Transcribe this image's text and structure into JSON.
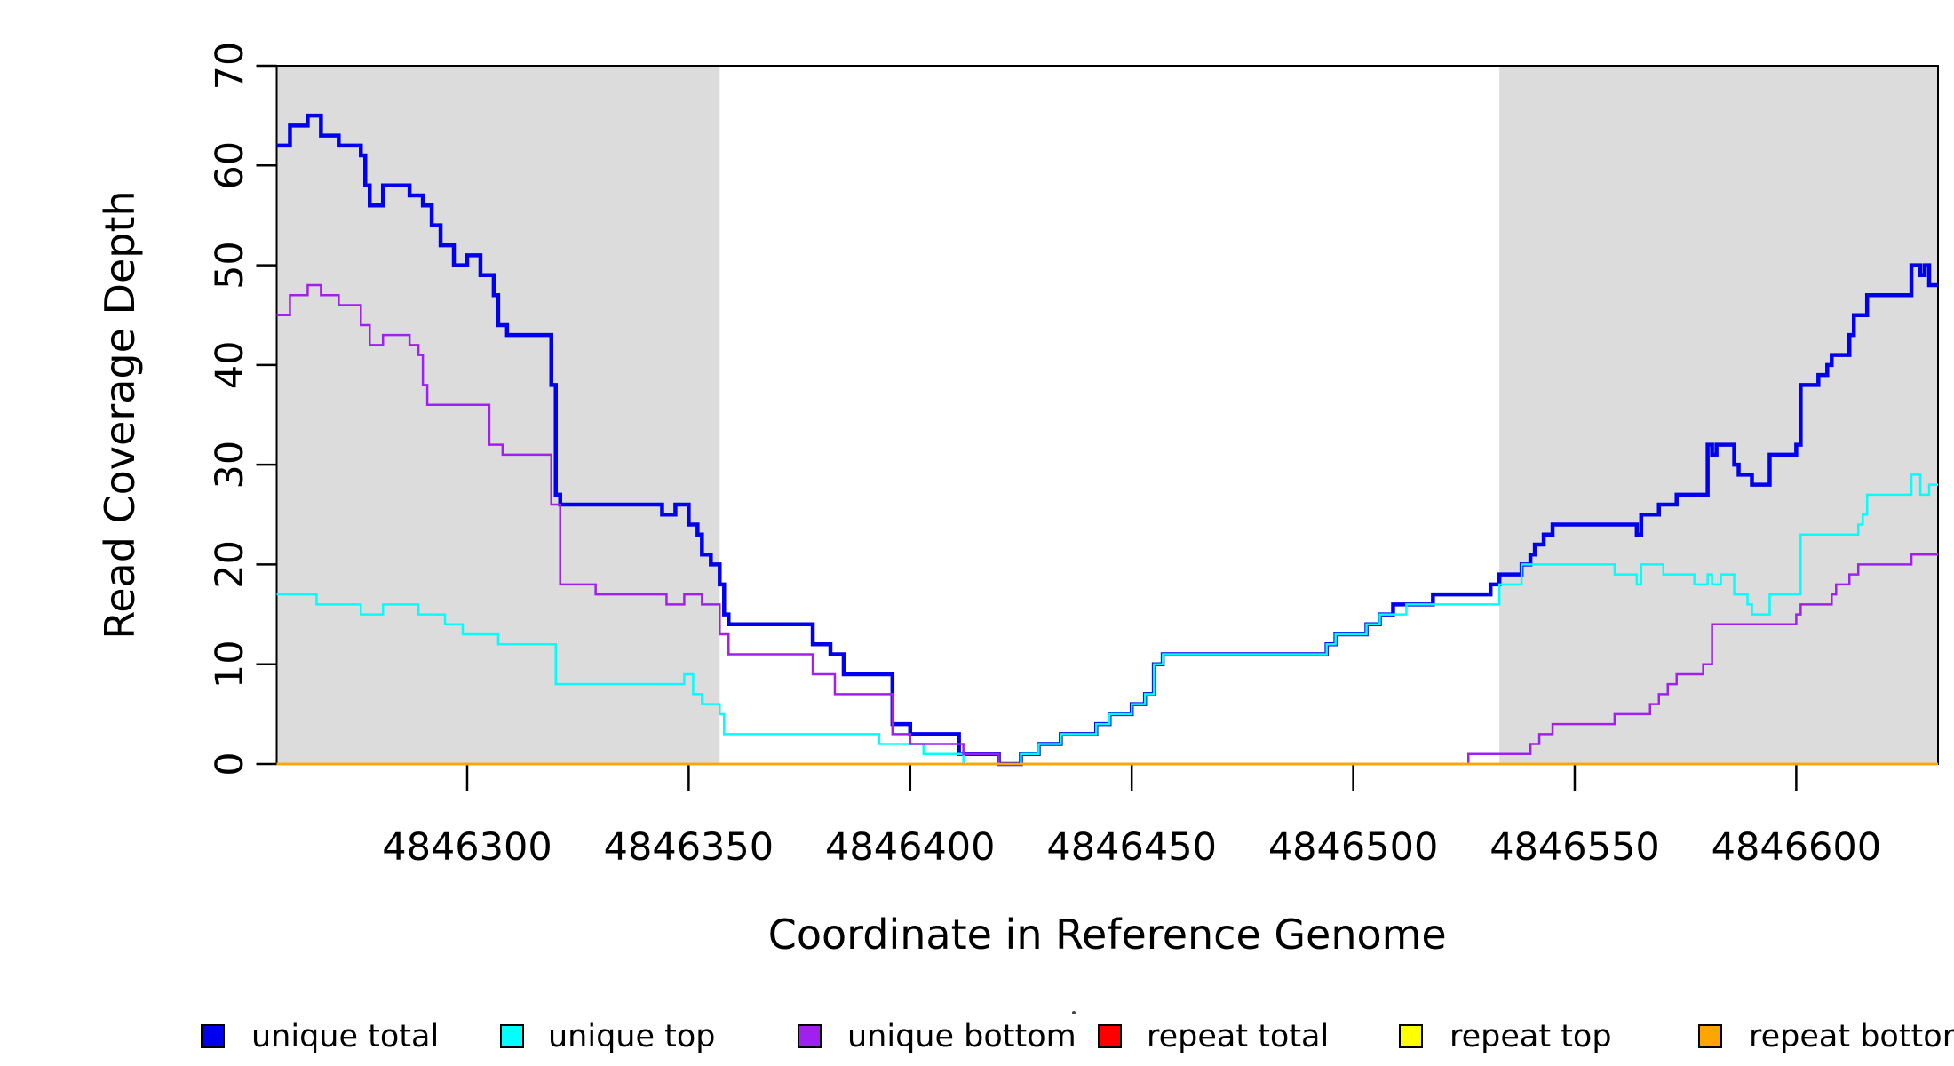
{
  "figure": {
    "background": "#FFFFFF",
    "description": "Read coverage depth step plot across a reference genome window"
  },
  "chart_data": {
    "type": "line",
    "subtype": "step",
    "title": "",
    "xlabel": "Coordinate in Reference Genome",
    "ylabel": "Read Coverage Depth",
    "xlim": [
      4846257,
      4846632
    ],
    "ylim": [
      0,
      70
    ],
    "grid": false,
    "x_ticks": [
      {
        "value": 4846300,
        "label": "4846300"
      },
      {
        "value": 4846350,
        "label": "4846350"
      },
      {
        "value": 4846400,
        "label": "4846400"
      },
      {
        "value": 4846450,
        "label": "4846450"
      },
      {
        "value": 4846500,
        "label": "4846500"
      },
      {
        "value": 4846550,
        "label": "4846550"
      },
      {
        "value": 4846600,
        "label": "4846600"
      }
    ],
    "y_ticks": [
      {
        "value": 0,
        "label": "0"
      },
      {
        "value": 10,
        "label": "10"
      },
      {
        "value": 20,
        "label": "20"
      },
      {
        "value": 30,
        "label": "30"
      },
      {
        "value": 40,
        "label": "40"
      },
      {
        "value": 50,
        "label": "50"
      },
      {
        "value": 60,
        "label": "60"
      },
      {
        "value": 70,
        "label": "70"
      }
    ],
    "shaded_regions": [
      {
        "x0": 4846257,
        "x1": 4846357,
        "color": "#DCDCDC",
        "border": "#000000"
      },
      {
        "x0": 4846533,
        "x1": 4846632,
        "color": "#DCDCDC",
        "border": "#000000"
      }
    ],
    "plot_border_color": "#000000",
    "series": [
      {
        "name": "unique total",
        "color": "#0000EE",
        "width": 4.5,
        "steps": [
          [
            4846257,
            62
          ],
          [
            4846260,
            64
          ],
          [
            4846264,
            65
          ],
          [
            4846267,
            63
          ],
          [
            4846271,
            62
          ],
          [
            4846276,
            61
          ],
          [
            4846277,
            58
          ],
          [
            4846278,
            56
          ],
          [
            4846281,
            58
          ],
          [
            4846287,
            57
          ],
          [
            4846290,
            56
          ],
          [
            4846292,
            54
          ],
          [
            4846294,
            52
          ],
          [
            4846297,
            50
          ],
          [
            4846300,
            51
          ],
          [
            4846303,
            49
          ],
          [
            4846306,
            47
          ],
          [
            4846307,
            44
          ],
          [
            4846309,
            43
          ],
          [
            4846319,
            38
          ],
          [
            4846320,
            27
          ],
          [
            4846321,
            26
          ],
          [
            4846344,
            25
          ],
          [
            4846347,
            26
          ],
          [
            4846350,
            24
          ],
          [
            4846352,
            23
          ],
          [
            4846353,
            21
          ],
          [
            4846355,
            20
          ],
          [
            4846357,
            18
          ],
          [
            4846358,
            15
          ],
          [
            4846359,
            14
          ],
          [
            4846378,
            12
          ],
          [
            4846382,
            11
          ],
          [
            4846385,
            9
          ],
          [
            4846396,
            4
          ],
          [
            4846400,
            3
          ],
          [
            4846411,
            1
          ],
          [
            4846420,
            0
          ],
          [
            4846425,
            1
          ],
          [
            4846429,
            2
          ],
          [
            4846434,
            3
          ],
          [
            4846442,
            4
          ],
          [
            4846445,
            5
          ],
          [
            4846450,
            6
          ],
          [
            4846453,
            7
          ],
          [
            4846455,
            10
          ],
          [
            4846457,
            11
          ],
          [
            4846494,
            12
          ],
          [
            4846496,
            13
          ],
          [
            4846503,
            14
          ],
          [
            4846506,
            15
          ],
          [
            4846509,
            16
          ],
          [
            4846518,
            17
          ],
          [
            4846531,
            18
          ],
          [
            4846533,
            19
          ],
          [
            4846538,
            20
          ],
          [
            4846540,
            21
          ],
          [
            4846541,
            22
          ],
          [
            4846543,
            23
          ],
          [
            4846545,
            24
          ],
          [
            4846564,
            23
          ],
          [
            4846565,
            25
          ],
          [
            4846569,
            26
          ],
          [
            4846573,
            27
          ],
          [
            4846580,
            32
          ],
          [
            4846581,
            31
          ],
          [
            4846582,
            32
          ],
          [
            4846586,
            30
          ],
          [
            4846587,
            29
          ],
          [
            4846590,
            28
          ],
          [
            4846594,
            31
          ],
          [
            4846600,
            32
          ],
          [
            4846601,
            38
          ],
          [
            4846605,
            39
          ],
          [
            4846607,
            40
          ],
          [
            4846608,
            41
          ],
          [
            4846612,
            43
          ],
          [
            4846613,
            45
          ],
          [
            4846616,
            47
          ],
          [
            4846626,
            50
          ],
          [
            4846628,
            49
          ],
          [
            4846629,
            50
          ],
          [
            4846630,
            48
          ]
        ]
      },
      {
        "name": "unique top",
        "color": "#00FFFF",
        "width": 2.5,
        "steps": [
          [
            4846257,
            17
          ],
          [
            4846266,
            16
          ],
          [
            4846276,
            15
          ],
          [
            4846281,
            16
          ],
          [
            4846289,
            15
          ],
          [
            4846295,
            14
          ],
          [
            4846299,
            13
          ],
          [
            4846307,
            12
          ],
          [
            4846320,
            8
          ],
          [
            4846349,
            9
          ],
          [
            4846351,
            7
          ],
          [
            4846353,
            6
          ],
          [
            4846357,
            5
          ],
          [
            4846358,
            3
          ],
          [
            4846393,
            2
          ],
          [
            4846403,
            1
          ],
          [
            4846412,
            0
          ],
          [
            4846425,
            1
          ],
          [
            4846429,
            2
          ],
          [
            4846434,
            3
          ],
          [
            4846442,
            4
          ],
          [
            4846445,
            5
          ],
          [
            4846450,
            6
          ],
          [
            4846453,
            7
          ],
          [
            4846455,
            10
          ],
          [
            4846457,
            11
          ],
          [
            4846494,
            12
          ],
          [
            4846496,
            13
          ],
          [
            4846503,
            14
          ],
          [
            4846506,
            15
          ],
          [
            4846512,
            16
          ],
          [
            4846533,
            18
          ],
          [
            4846538,
            20
          ],
          [
            4846559,
            19
          ],
          [
            4846564,
            18
          ],
          [
            4846565,
            20
          ],
          [
            4846570,
            19
          ],
          [
            4846577,
            18
          ],
          [
            4846580,
            19
          ],
          [
            4846581,
            18
          ],
          [
            4846583,
            19
          ],
          [
            4846586,
            17
          ],
          [
            4846589,
            16
          ],
          [
            4846590,
            15
          ],
          [
            4846594,
            17
          ],
          [
            4846601,
            23
          ],
          [
            4846614,
            24
          ],
          [
            4846615,
            25
          ],
          [
            4846616,
            27
          ],
          [
            4846626,
            29
          ],
          [
            4846628,
            27
          ],
          [
            4846630,
            28
          ]
        ]
      },
      {
        "name": "unique bottom",
        "color": "#A020F0",
        "width": 2.5,
        "steps": [
          [
            4846257,
            45
          ],
          [
            4846260,
            47
          ],
          [
            4846264,
            48
          ],
          [
            4846267,
            47
          ],
          [
            4846271,
            46
          ],
          [
            4846276,
            44
          ],
          [
            4846278,
            42
          ],
          [
            4846281,
            43
          ],
          [
            4846287,
            42
          ],
          [
            4846289,
            41
          ],
          [
            4846290,
            38
          ],
          [
            4846291,
            36
          ],
          [
            4846305,
            32
          ],
          [
            4846308,
            31
          ],
          [
            4846319,
            26
          ],
          [
            4846321,
            18
          ],
          [
            4846329,
            17
          ],
          [
            4846345,
            16
          ],
          [
            4846349,
            17
          ],
          [
            4846353,
            16
          ],
          [
            4846357,
            13
          ],
          [
            4846359,
            11
          ],
          [
            4846378,
            9
          ],
          [
            4846383,
            7
          ],
          [
            4846396,
            3
          ],
          [
            4846400,
            2
          ],
          [
            4846412,
            1
          ],
          [
            4846420,
            0
          ],
          [
            4846526,
            1
          ],
          [
            4846540,
            2
          ],
          [
            4846542,
            3
          ],
          [
            4846545,
            4
          ],
          [
            4846559,
            5
          ],
          [
            4846567,
            6
          ],
          [
            4846569,
            7
          ],
          [
            4846571,
            8
          ],
          [
            4846573,
            9
          ],
          [
            4846579,
            10
          ],
          [
            4846581,
            14
          ],
          [
            4846600,
            15
          ],
          [
            4846601,
            16
          ],
          [
            4846608,
            17
          ],
          [
            4846609,
            18
          ],
          [
            4846612,
            19
          ],
          [
            4846614,
            20
          ],
          [
            4846626,
            21
          ]
        ]
      },
      {
        "name": "repeat total",
        "color": "#FF0000",
        "width": 2.5,
        "steps": [
          [
            4846257,
            0
          ]
        ]
      },
      {
        "name": "repeat top",
        "color": "#FFFF00",
        "width": 2.5,
        "steps": [
          [
            4846257,
            0
          ]
        ]
      },
      {
        "name": "repeat bottom",
        "color": "#FFA500",
        "width": 2.5,
        "steps": [
          [
            4846257,
            0
          ]
        ]
      }
    ],
    "legend": {
      "position": "bottom",
      "items": [
        {
          "label": "unique total",
          "color": "#0000EE"
        },
        {
          "label": "unique top",
          "color": "#00FFFF"
        },
        {
          "label": "unique bottom",
          "color": "#A020F0"
        },
        {
          "label": "repeat total",
          "color": "#FF0000"
        },
        {
          "label": "repeat top",
          "color": "#FFFF00"
        },
        {
          "label": "repeat bottom",
          "color": "#FFA500"
        }
      ]
    }
  }
}
